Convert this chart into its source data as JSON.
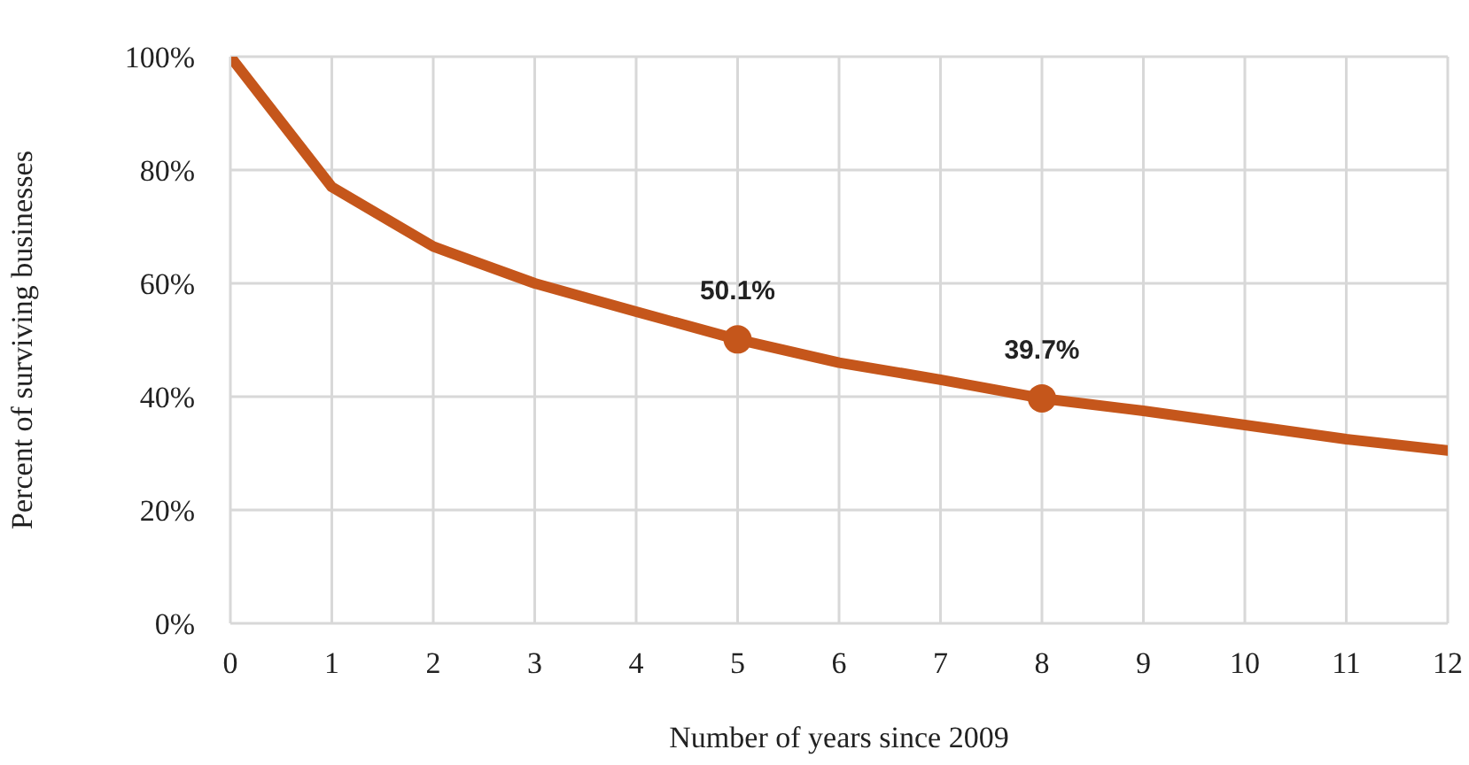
{
  "chart_data": {
    "type": "line",
    "xlabel": "Number of years since 2009",
    "ylabel": "Percent of surviving businesses",
    "x": [
      0,
      1,
      2,
      3,
      4,
      5,
      6,
      7,
      8,
      9,
      10,
      11,
      12
    ],
    "series": [
      {
        "color": "#c5561b",
        "values": [
          100,
          77,
          66.5,
          60,
          55,
          50.1,
          46,
          43,
          39.7,
          37.5,
          35,
          32.5,
          30.5
        ]
      },
      {
        "type": "scatter",
        "marker": "circle",
        "color": "#c5561b",
        "x": [
          5,
          8
        ],
        "values": [
          50.1,
          39.7
        ],
        "value_labels": [
          "50.1%",
          "39.7%"
        ]
      }
    ],
    "xlim": [
      0,
      12
    ],
    "xticks": [
      0,
      1,
      2,
      3,
      4,
      5,
      6,
      7,
      8,
      9,
      10,
      11,
      12
    ],
    "ylim": [
      0,
      100
    ],
    "yticks": [
      {
        "value": 0,
        "label": "0%"
      },
      {
        "value": 20,
        "label": "20%"
      },
      {
        "value": 40,
        "label": "40%"
      },
      {
        "value": 60,
        "label": "60%"
      },
      {
        "value": 80,
        "label": "80%"
      },
      {
        "value": 100,
        "label": "100%"
      }
    ],
    "grid": true,
    "line_style": "solid",
    "legend": false
  }
}
